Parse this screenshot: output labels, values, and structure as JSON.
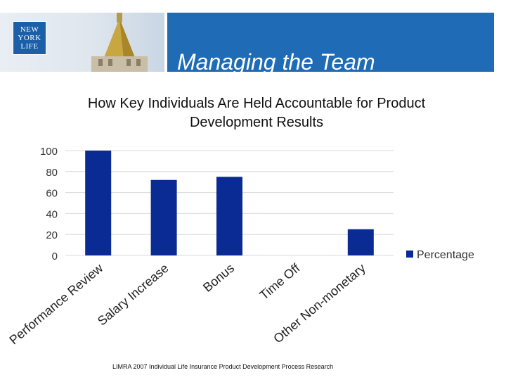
{
  "slide": {
    "title": "Managing the Team",
    "subtitle_line1": "How Key Individuals Are Held Accountable for Product",
    "subtitle_line2": "Development Results",
    "footer": "LIMRA 2007 Individual Life Insurance Product Development Process  Research",
    "logo_lines": [
      "NEW",
      "YORK",
      "LIFE"
    ]
  },
  "colors": {
    "header_blue": "#1f6bb5",
    "bar_navy": "#0a2b93",
    "grid": "#d9d9d9"
  },
  "chart_data": {
    "type": "bar",
    "categories": [
      "Performance Review",
      "Salary Increase",
      "Bonus",
      "Time Off",
      "Other Non-monetary"
    ],
    "series": [
      {
        "name": "Percentage",
        "values": [
          100,
          72,
          75,
          0,
          25
        ]
      }
    ],
    "ylim": [
      0,
      100
    ],
    "yticks": [
      0,
      20,
      40,
      60,
      80,
      100
    ],
    "grid": true,
    "legend": "right"
  }
}
